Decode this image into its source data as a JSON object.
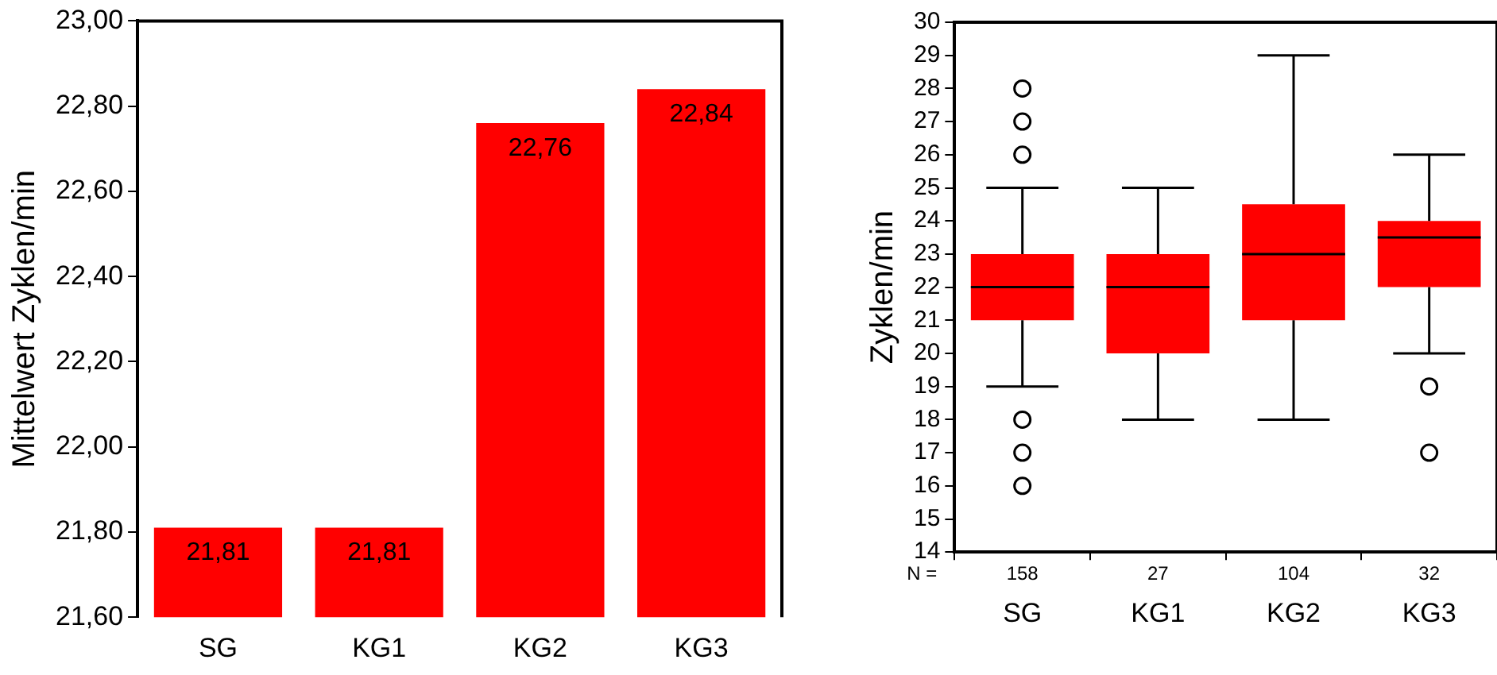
{
  "chart_data": [
    {
      "type": "bar",
      "ylabel": "Mittelwert Zyklen/min",
      "categories": [
        "SG",
        "KG1",
        "KG2",
        "KG3"
      ],
      "values": [
        21.81,
        21.81,
        22.76,
        22.84
      ],
      "value_labels": [
        "21,81",
        "21,81",
        "22,76",
        "22,84"
      ],
      "color": "#ff0000",
      "ylim": [
        21.6,
        23.0
      ],
      "yticks": [
        {
          "value": 21.6,
          "label": "21,60"
        },
        {
          "value": 21.8,
          "label": "21,80"
        },
        {
          "value": 22.0,
          "label": "22,00"
        },
        {
          "value": 22.2,
          "label": "22,20"
        },
        {
          "value": 22.4,
          "label": "22,40"
        },
        {
          "value": 22.6,
          "label": "22,60"
        },
        {
          "value": 22.8,
          "label": "22,80"
        },
        {
          "value": 23.0,
          "label": "23,00"
        }
      ]
    },
    {
      "type": "box",
      "ylabel": "Zyklen/min",
      "categories": [
        "SG",
        "KG1",
        "KG2",
        "KG3"
      ],
      "color": "#ff0000",
      "ylim": [
        14,
        30
      ],
      "yticks": [
        14,
        15,
        16,
        17,
        18,
        19,
        20,
        21,
        22,
        23,
        24,
        25,
        26,
        27,
        28,
        29,
        30
      ],
      "boxes": [
        {
          "low": 19,
          "q1": 21,
          "median": 22,
          "q3": 23,
          "high": 25,
          "outliers": [
            28,
            27,
            26,
            18,
            17,
            16
          ]
        },
        {
          "low": 18,
          "q1": 20,
          "median": 22,
          "q3": 23,
          "high": 25
        },
        {
          "low": 18,
          "q1": 21,
          "median": 23,
          "q3": 24.5,
          "high": 29
        },
        {
          "low": 20,
          "q1": 22,
          "median": 23.5,
          "q3": 24,
          "high": 26,
          "outliers": [
            19,
            17
          ]
        }
      ],
      "annotations": [
        "N =",
        "158",
        "27",
        "104",
        "32"
      ]
    }
  ]
}
